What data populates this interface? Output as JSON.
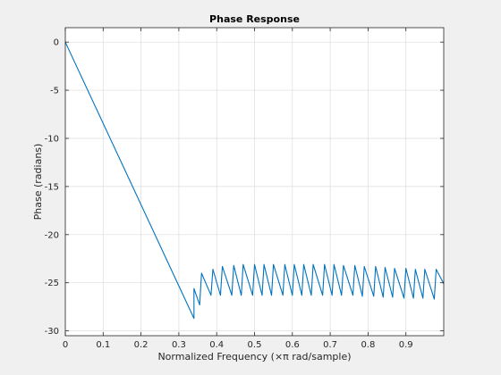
{
  "chart_data": {
    "type": "line",
    "title": "Phase Response",
    "xlabel": "Normalized Frequency (×π rad/sample)",
    "ylabel": "Phase (radians)",
    "xlim": [
      0,
      1.0
    ],
    "ylim": [
      -30.5,
      1.5
    ],
    "xticks": [
      0,
      0.1,
      0.2,
      0.3,
      0.4,
      0.5,
      0.6,
      0.7,
      0.8,
      0.9
    ],
    "yticks": [
      0,
      -5,
      -10,
      -15,
      -20,
      -25,
      -30
    ],
    "grid": true,
    "series": [
      {
        "color": "#0072bd",
        "points": [
          [
            0.0,
            0.0
          ],
          [
            0.34,
            -28.7
          ],
          [
            0.34,
            -25.6
          ],
          [
            0.355,
            -27.3
          ],
          [
            0.36,
            -24.0
          ],
          [
            0.385,
            -26.3
          ],
          [
            0.39,
            -23.6
          ],
          [
            0.41,
            -26.3
          ],
          [
            0.415,
            -23.3
          ],
          [
            0.44,
            -26.3
          ],
          [
            0.445,
            -23.2
          ],
          [
            0.465,
            -26.3
          ],
          [
            0.47,
            -23.1
          ],
          [
            0.495,
            -26.3
          ],
          [
            0.5,
            -23.1
          ],
          [
            0.52,
            -26.3
          ],
          [
            0.525,
            -23.1
          ],
          [
            0.545,
            -26.3
          ],
          [
            0.55,
            -23.1
          ],
          [
            0.575,
            -26.3
          ],
          [
            0.58,
            -23.1
          ],
          [
            0.6,
            -26.3
          ],
          [
            0.605,
            -23.1
          ],
          [
            0.625,
            -26.3
          ],
          [
            0.63,
            -23.1
          ],
          [
            0.65,
            -26.3
          ],
          [
            0.655,
            -23.1
          ],
          [
            0.68,
            -26.3
          ],
          [
            0.685,
            -23.1
          ],
          [
            0.705,
            -26.3
          ],
          [
            0.71,
            -23.1
          ],
          [
            0.73,
            -26.3
          ],
          [
            0.735,
            -23.2
          ],
          [
            0.76,
            -26.3
          ],
          [
            0.765,
            -23.2
          ],
          [
            0.785,
            -26.4
          ],
          [
            0.79,
            -23.3
          ],
          [
            0.815,
            -26.4
          ],
          [
            0.82,
            -23.3
          ],
          [
            0.84,
            -26.5
          ],
          [
            0.845,
            -23.4
          ],
          [
            0.865,
            -26.5
          ],
          [
            0.87,
            -23.5
          ],
          [
            0.895,
            -26.6
          ],
          [
            0.9,
            -23.5
          ],
          [
            0.92,
            -26.6
          ],
          [
            0.925,
            -23.6
          ],
          [
            0.945,
            -26.6
          ],
          [
            0.95,
            -23.6
          ],
          [
            0.975,
            -26.7
          ],
          [
            0.98,
            -23.6
          ],
          [
            1.0,
            -25.1
          ]
        ]
      }
    ]
  }
}
